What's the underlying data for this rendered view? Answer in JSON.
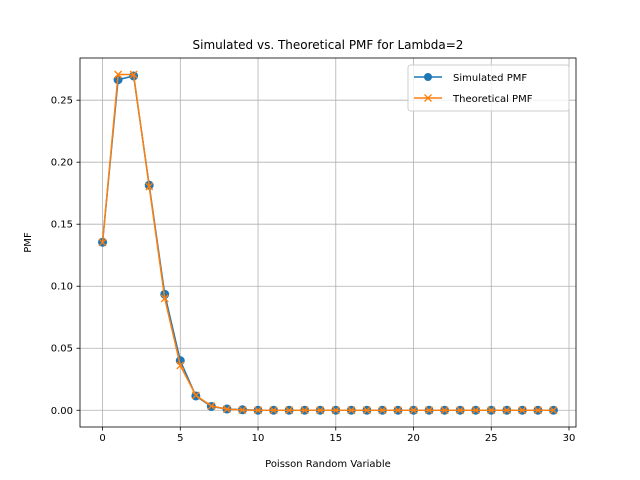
{
  "chart_data": {
    "type": "line",
    "title": "Simulated vs. Theoretical PMF for Lambda=2",
    "xlabel": "Poisson Random Variable",
    "ylabel": "PMF",
    "xlim": [
      -1.45,
      30.45
    ],
    "ylim": [
      -0.0135,
      0.284
    ],
    "xticks": [
      0,
      5,
      10,
      15,
      20,
      25,
      30
    ],
    "xtick_labels": [
      "0",
      "5",
      "10",
      "15",
      "20",
      "25",
      "30"
    ],
    "yticks": [
      0.0,
      0.05,
      0.1,
      0.15,
      0.2,
      0.25
    ],
    "ytick_labels": [
      "0.00",
      "0.05",
      "0.10",
      "0.15",
      "0.20",
      "0.25"
    ],
    "grid": true,
    "legend_position": "top-right",
    "x": [
      0,
      1,
      2,
      3,
      4,
      5,
      6,
      7,
      8,
      9,
      10,
      11,
      12,
      13,
      14,
      15,
      16,
      17,
      18,
      19,
      20,
      21,
      22,
      23,
      24,
      25,
      26,
      27,
      28,
      29
    ],
    "series": [
      {
        "name": "Simulated PMF",
        "color": "#1f77b4",
        "marker": "circle",
        "values": [
          0.1355,
          0.2665,
          0.2695,
          0.1815,
          0.0935,
          0.04,
          0.0115,
          0.003,
          0.001,
          0.0004,
          0,
          0,
          0,
          0,
          0,
          0,
          0,
          0,
          0,
          0,
          0,
          0,
          0,
          0,
          0,
          0,
          0,
          0,
          0,
          0
        ]
      },
      {
        "name": "Theoretical PMF",
        "color": "#ff7f0e",
        "marker": "x",
        "values": [
          0.1353,
          0.2707,
          0.2707,
          0.1804,
          0.0902,
          0.0361,
          0.012,
          0.0034,
          0.0009,
          0.0002,
          0,
          0,
          0,
          0,
          0,
          0,
          0,
          0,
          0,
          0,
          0,
          0,
          0,
          0,
          0,
          0,
          0,
          0,
          0,
          0
        ]
      }
    ]
  }
}
